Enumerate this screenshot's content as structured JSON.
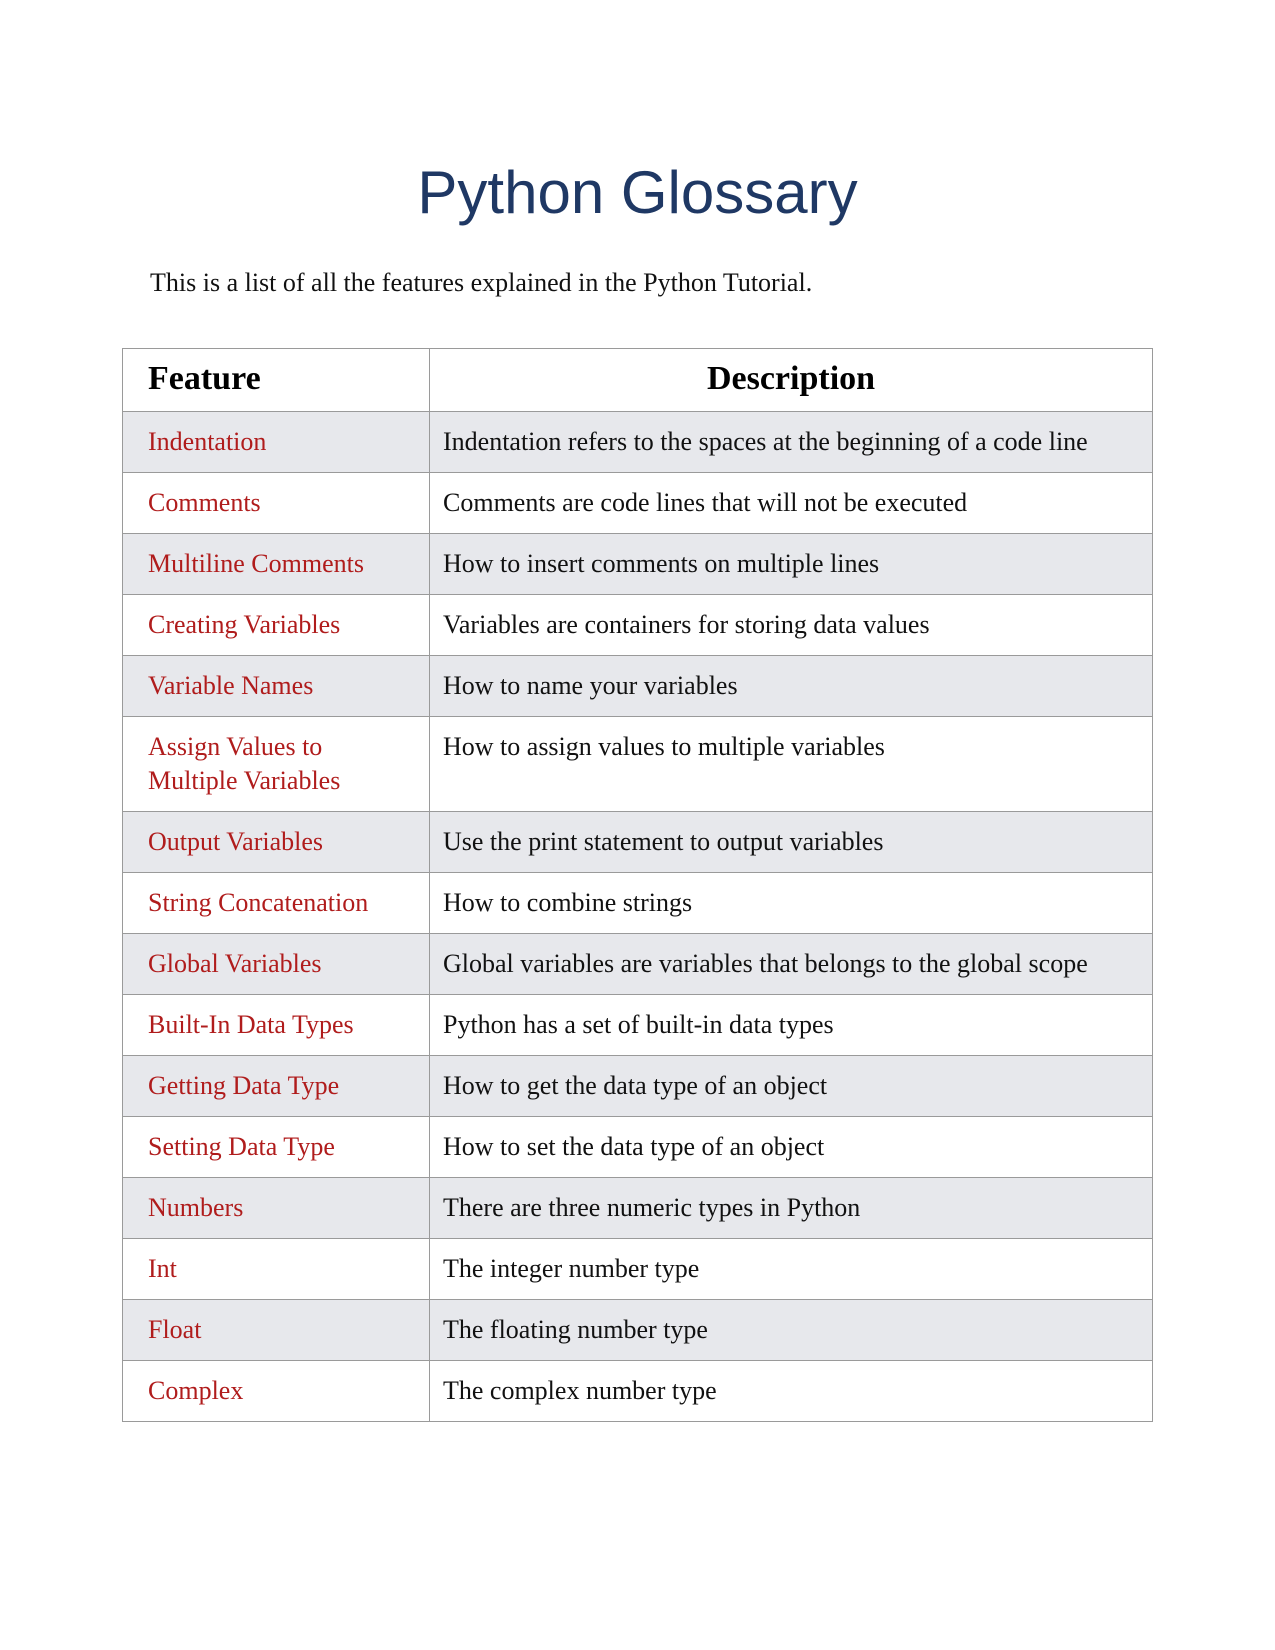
{
  "header": {
    "title": "Python Glossary",
    "subtitle": "This is a list of all the features explained in the Python Tutorial."
  },
  "table": {
    "columns": [
      "Feature",
      "Description"
    ],
    "rows": [
      [
        "Indentation",
        "Indentation refers to the spaces at the beginning of a code line"
      ],
      [
        "Comments",
        "Comments are code lines that will not be executed"
      ],
      [
        "Multiline Comments",
        "How to insert comments on multiple lines"
      ],
      [
        "Creating Variables",
        "Variables are containers for storing data values"
      ],
      [
        "Variable Names",
        "How to name your variables"
      ],
      [
        "Assign Values to Multiple Variables",
        "How to assign values to multiple variables"
      ],
      [
        "Output Variables",
        "Use the print statement to output variables"
      ],
      [
        "String Concatenation",
        "How to combine strings"
      ],
      [
        "Global Variables",
        "Global variables are variables that belongs to the global scope"
      ],
      [
        "Built-In Data Types",
        "Python has a set of built-in data types"
      ],
      [
        "Getting Data Type",
        "How to get the data type of an object"
      ],
      [
        "Setting Data Type",
        "How to set the data type of an object"
      ],
      [
        "Numbers",
        "There are three numeric types in Python"
      ],
      [
        "Int",
        "The integer number type"
      ],
      [
        "Float",
        "The floating number type"
      ],
      [
        "Complex",
        "The complex number type"
      ]
    ]
  }
}
